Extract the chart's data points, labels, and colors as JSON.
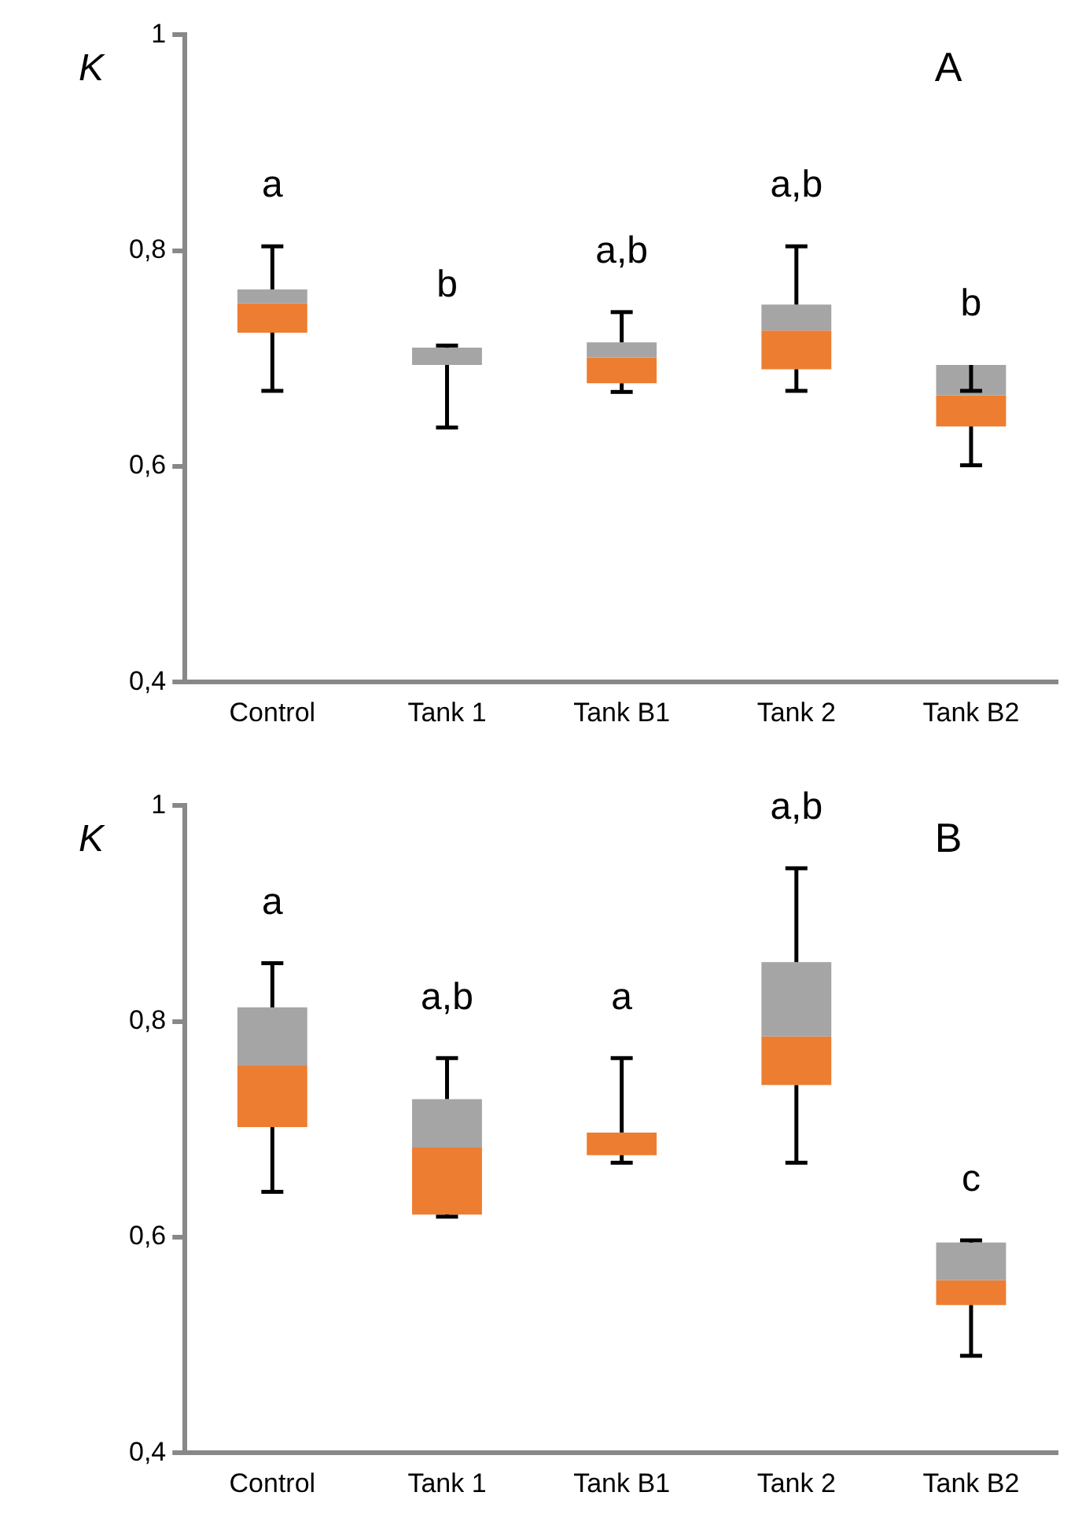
{
  "chart_data": [
    {
      "type": "box",
      "title": "A",
      "ylabel": "K",
      "categories": [
        "Control",
        "Tank 1",
        "Tank B1",
        "Tank 2",
        "Tank B2"
      ],
      "series": [
        {
          "color": "#a5a5a5",
          "colors": [
            "#ed7d31",
            "#a5a5a5",
            "#ed7d31",
            "#ed7d31",
            "#ed7d31"
          ],
          "boxes": [
            {
              "low": 0.67,
              "q1": 0.724,
              "median": 0.751,
              "q3": 0.764,
              "high": 0.804
            },
            {
              "low": 0.636,
              "q1": 0.694,
              "median": 0.694,
              "q3": 0.71,
              "high": 0.712
            },
            {
              "low": 0.669,
              "q1": 0.677,
              "median": 0.701,
              "q3": 0.715,
              "high": 0.743
            },
            {
              "low": 0.67,
              "q1": 0.69,
              "median": 0.726,
              "q3": 0.75,
              "high": 0.804
            },
            {
              "low": 0.601,
              "q1": 0.637,
              "median": 0.666,
              "q3": 0.694,
              "high": 0.67
            }
          ]
        }
      ],
      "ylim": [
        0.4,
        1
      ],
      "yticks": [
        {
          "value": 0.4,
          "label": "0,4"
        },
        {
          "value": 0.6,
          "label": "0,6"
        },
        {
          "value": 0.8,
          "label": "0,8"
        },
        1
      ],
      "grid": false,
      "legend": false,
      "annotations": [
        "a",
        "b",
        "a,b",
        "a,b",
        "b"
      ]
    },
    {
      "type": "box",
      "title": "B",
      "ylabel": "K",
      "categories": [
        "Control",
        "Tank 1",
        "Tank B1",
        "Tank 2",
        "Tank B2"
      ],
      "series": [
        {
          "color": "#a5a5a5",
          "colors": [
            "#ed7d31",
            "#ed7d31",
            "#ed7d31",
            "#ed7d31",
            "#ed7d31"
          ],
          "boxes": [
            {
              "low": 0.642,
              "q1": 0.702,
              "median": 0.759,
              "q3": 0.813,
              "high": 0.854
            },
            {
              "low": 0.619,
              "q1": 0.621,
              "median": 0.683,
              "q3": 0.728,
              "high": 0.766
            },
            {
              "low": 0.669,
              "q1": 0.676,
              "median": 0.697,
              "q3": 0.697,
              "high": 0.766
            },
            {
              "low": 0.669,
              "q1": 0.741,
              "median": 0.786,
              "q3": 0.855,
              "high": 0.942
            },
            {
              "low": 0.49,
              "q1": 0.537,
              "median": 0.56,
              "q3": 0.595,
              "high": 0.597
            }
          ]
        }
      ],
      "ylim": [
        0.4,
        1
      ],
      "yticks": [
        {
          "value": 0.4,
          "label": "0,4"
        },
        {
          "value": 0.6,
          "label": "0,6"
        },
        {
          "value": 0.8,
          "label": "0,8"
        },
        1
      ],
      "grid": false,
      "legend": false,
      "annotations": [
        "a",
        "a,b",
        "a",
        "a,b",
        "c"
      ]
    }
  ]
}
